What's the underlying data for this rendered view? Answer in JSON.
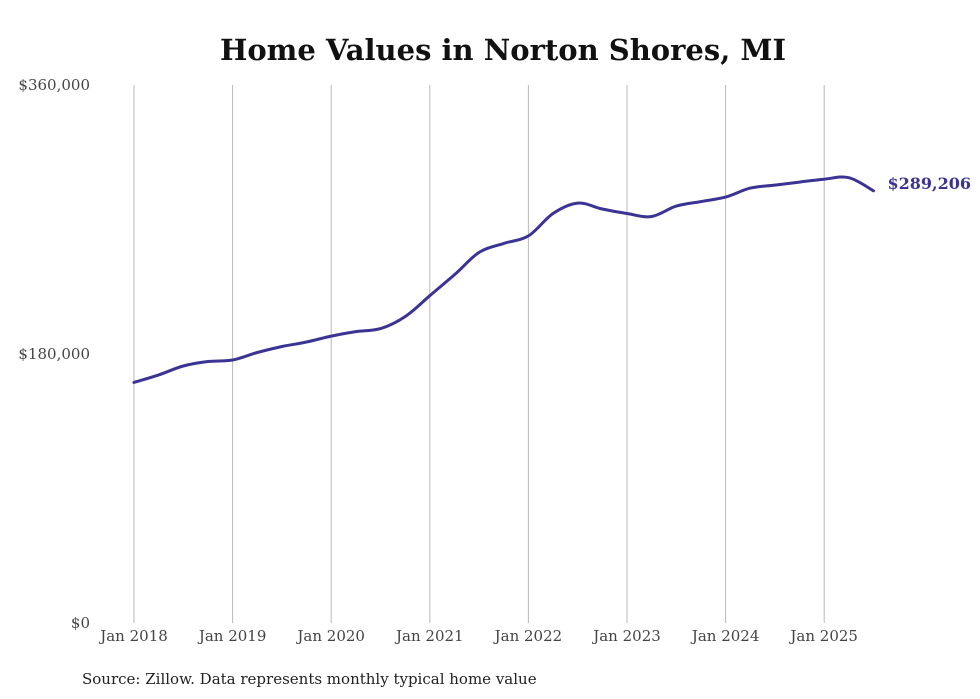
{
  "chart_data": {
    "type": "line",
    "title": "Home Values in Norton Shores, MI",
    "source": "Source: Zillow. Data represents monthly typical home value",
    "ylim": [
      0,
      360000
    ],
    "yticks": [
      "$0",
      "$180,000",
      "$360,000"
    ],
    "ytick_values": [
      0,
      180000,
      360000
    ],
    "xticks": [
      "Jan 2018",
      "Jan 2019",
      "Jan 2020",
      "Jan 2021",
      "Jan 2022",
      "Jan 2023",
      "Jan 2024",
      "Jan 2025"
    ],
    "grid": "vertical",
    "line_color": "#3b3494",
    "end_label": "$289,206",
    "series": [
      {
        "x": [
          "2018-01",
          "2018-04",
          "2018-07",
          "2018-10",
          "2019-01",
          "2019-04",
          "2019-07",
          "2019-10",
          "2020-01",
          "2020-04",
          "2020-07",
          "2020-10",
          "2021-01",
          "2021-04",
          "2021-07",
          "2021-10",
          "2022-01",
          "2022-04",
          "2022-07",
          "2022-10",
          "2023-01",
          "2023-04",
          "2023-07",
          "2023-10",
          "2024-01",
          "2024-04",
          "2024-07",
          "2024-10",
          "2025-01",
          "2025-04",
          "2025-07"
        ],
        "values": [
          161000,
          166000,
          172000,
          175000,
          176000,
          181000,
          185000,
          188000,
          192000,
          195000,
          197000,
          205000,
          219000,
          233000,
          248000,
          254000,
          259000,
          274000,
          281000,
          277000,
          274000,
          272000,
          279000,
          282000,
          285000,
          291000,
          293000,
          295000,
          297000,
          298000,
          289206
        ]
      }
    ]
  }
}
